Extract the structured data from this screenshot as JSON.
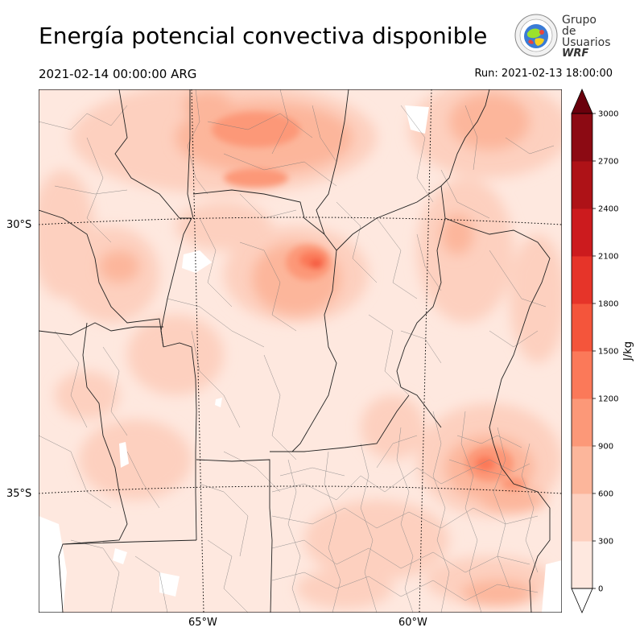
{
  "header": {
    "title": "Energía potencial convectiva disponible",
    "valid_time": "2021-02-14 00:00:00 ARG",
    "run_time": "Run: 2021-02-13 18:00:00"
  },
  "logo": {
    "line1": "Grupo de",
    "line2": "Usuarios",
    "line3": "WRF"
  },
  "map": {
    "lat_labels": [
      "30°S",
      "35°S"
    ],
    "lon_labels": [
      "65°W",
      "60°W"
    ]
  },
  "colorbar": {
    "unit_label": "J/kg",
    "ticks": [
      "0",
      "300",
      "600",
      "900",
      "1200",
      "1500",
      "1800",
      "2100",
      "2400",
      "2700",
      "3000"
    ],
    "colors": [
      "#fee8df",
      "#fdd0bf",
      "#fcb69b",
      "#fc9878",
      "#fb7959",
      "#f4553b",
      "#e63429",
      "#cc1b1e",
      "#ae1217",
      "#8c0a13",
      "#6a000c"
    ]
  }
}
